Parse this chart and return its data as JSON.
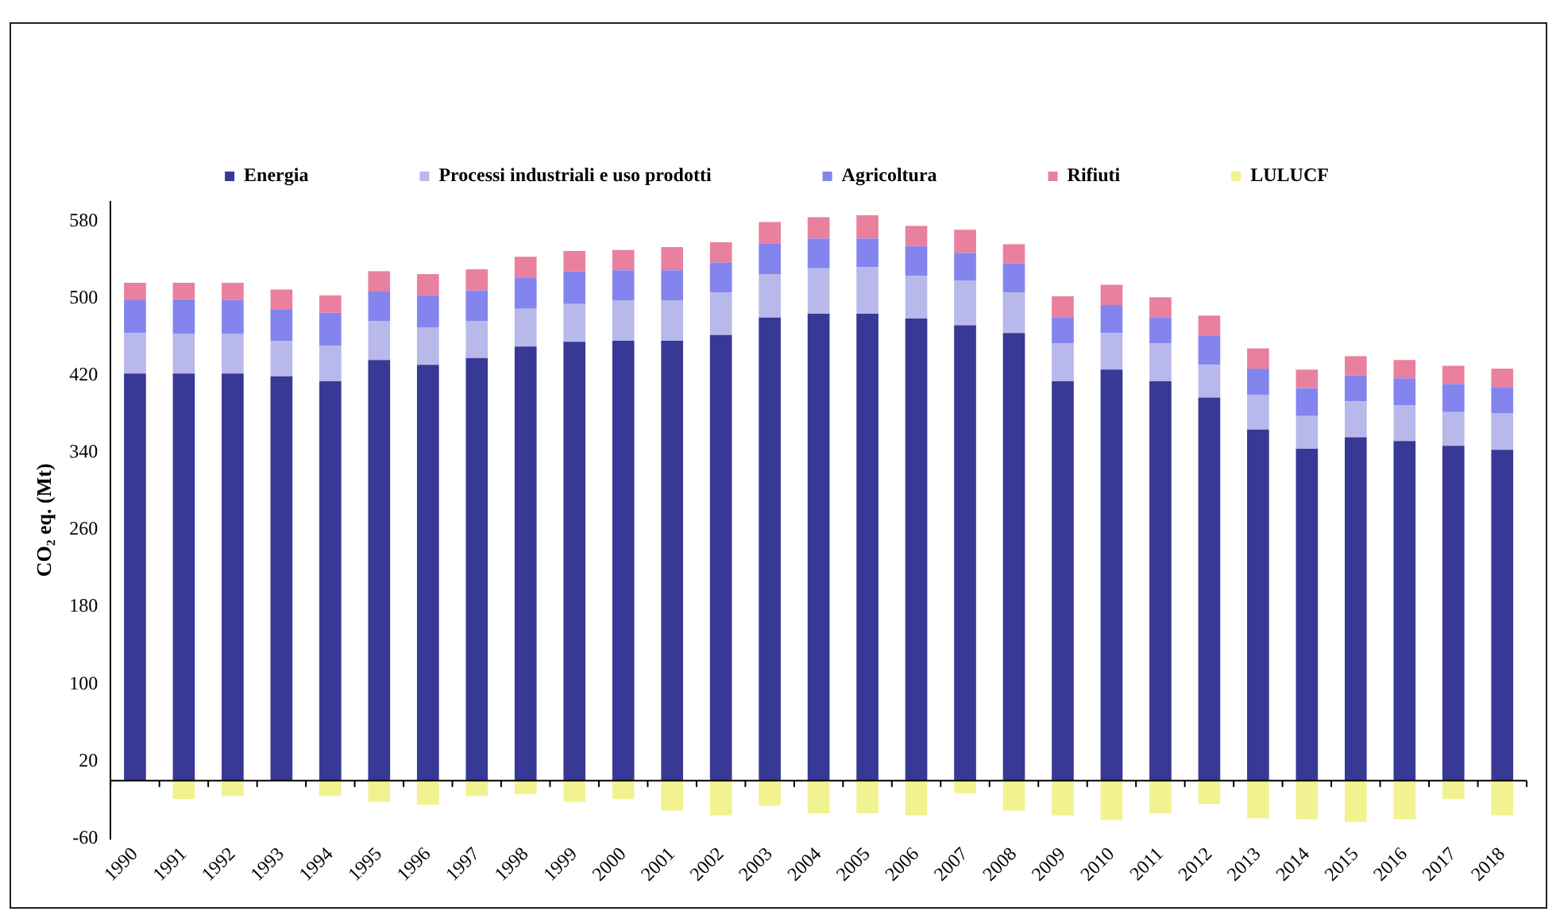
{
  "chart_data": {
    "type": "bar",
    "stacked": true,
    "ylabel": "CO₂ eq. (Mt)",
    "legend": "top",
    "grid": false,
    "categories": [
      "1990",
      "1991",
      "1992",
      "1993",
      "1994",
      "1995",
      "1996",
      "1997",
      "1998",
      "1999",
      "2000",
      "2001",
      "2002",
      "2003",
      "2004",
      "2005",
      "2006",
      "2007",
      "2008",
      "2009",
      "2010",
      "2011",
      "2012",
      "2013",
      "2014",
      "2015",
      "2016",
      "2017",
      "2018"
    ],
    "ylim": [
      -60,
      600
    ],
    "yticks": [
      -60,
      20,
      100,
      180,
      260,
      340,
      420,
      500,
      580
    ],
    "series": [
      {
        "name": "Energia",
        "color": "#383896",
        "values": [
          422,
          422,
          422,
          419,
          414,
          436,
          431,
          438,
          450,
          455,
          456,
          456,
          462,
          480,
          484,
          484,
          479,
          472,
          464,
          414,
          426,
          414,
          397,
          364,
          344,
          356,
          352,
          347,
          343
        ]
      },
      {
        "name": "Processi industriali e uso prodotti",
        "color": "#b8b8ea",
        "values": [
          42,
          41,
          41,
          37,
          37,
          40,
          39,
          38,
          39,
          39,
          42,
          42,
          44,
          45,
          47,
          48,
          44,
          46,
          42,
          39,
          38,
          39,
          34,
          36,
          34,
          37,
          37,
          35,
          38
        ]
      },
      {
        "name": "Agricoltura",
        "color": "#8484ee",
        "values": [
          34,
          36,
          35,
          32,
          34,
          31,
          33,
          32,
          32,
          34,
          31,
          31,
          31,
          32,
          31,
          30,
          31,
          29,
          30,
          27,
          29,
          27,
          30,
          27,
          29,
          27,
          28,
          29,
          27
        ]
      },
      {
        "name": "Rifiuti",
        "color": "#e8809e",
        "values": [
          18,
          17,
          18,
          21,
          18,
          21,
          22,
          22,
          22,
          21,
          21,
          24,
          21,
          22,
          22,
          24,
          21,
          24,
          20,
          22,
          21,
          21,
          21,
          21,
          19,
          20,
          19,
          19,
          19
        ]
      },
      {
        "name": "LULUCF",
        "color": "#f2f290",
        "values": [
          null,
          -19,
          -16,
          null,
          -16,
          -22,
          -25,
          -16,
          -14,
          -22,
          -19,
          -31,
          -36,
          -26,
          -34,
          -34,
          -36,
          -13,
          -31,
          -36,
          -41,
          -34,
          -24,
          -39,
          -40,
          -43,
          -40,
          -19,
          -36
        ]
      }
    ]
  }
}
